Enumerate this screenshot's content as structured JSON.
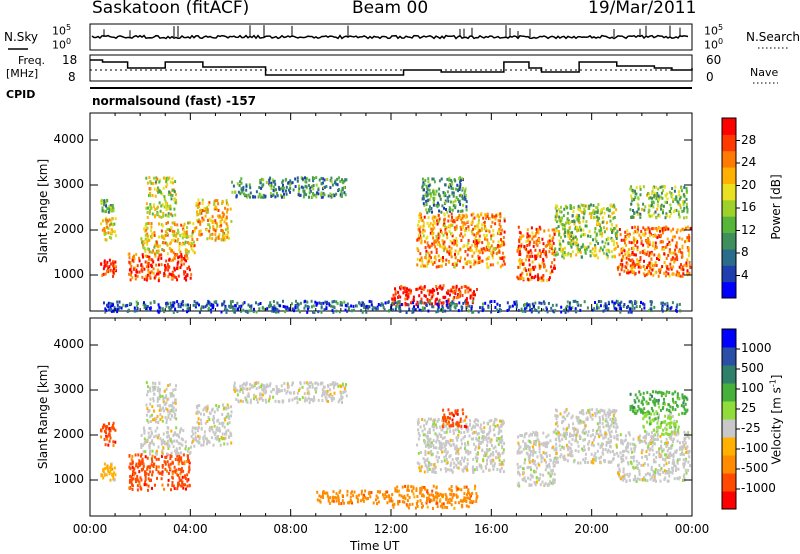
{
  "header": {
    "station": "Saskatoon (fitACF)",
    "beam": "Beam 00",
    "date": "19/Mar/2011"
  },
  "status_panel": {
    "nsky_label": "N.Sky",
    "nsky_ticks": [
      "10^5",
      "10^0"
    ],
    "nsearch_label": "N.Search",
    "nsearch_ticks": [
      "10^5",
      "10^0"
    ],
    "freq_label_1": "Freq.",
    "freq_label_2": "[MHz]",
    "freq_ticks": [
      "18",
      "8"
    ],
    "nave_label": "Nave",
    "nave_ticks": [
      "60",
      "0"
    ],
    "cpid_label": "CPID",
    "cpid_value": "normalsound (fast) -157"
  },
  "chart_data": [
    {
      "type": "heatmap",
      "name": "power",
      "ylabel": "Slant Range [km]",
      "yticks": [
        1000,
        2000,
        3000,
        4000
      ],
      "ylim": [
        200,
        4600
      ],
      "xlim": [
        0,
        24
      ],
      "colorbar_label": "Power [dB]",
      "colorbar_ticks": [
        "4",
        "8",
        "12",
        "16",
        "20",
        "24",
        "28"
      ],
      "colorbar_colors": [
        "#0000ff",
        "#1f3fae",
        "#2a6d8a",
        "#3f8f5c",
        "#56b53a",
        "#9ed12a",
        "#e8e020",
        "#ffb000",
        "#ff7a00",
        "#ff3a00",
        "#ff0000"
      ],
      "echo_regions": [
        {
          "x": [
            0.4,
            1.0
          ],
          "y": [
            1000,
            1400
          ],
          "level": 0.95
        },
        {
          "x": [
            0.4,
            1.0
          ],
          "y": [
            1800,
            2300
          ],
          "level": 0.6
        },
        {
          "x": [
            0.4,
            0.9
          ],
          "y": [
            2400,
            2700
          ],
          "level": 0.35
        },
        {
          "x": [
            1.5,
            4.0
          ],
          "y": [
            900,
            1500
          ],
          "level": 0.92
        },
        {
          "x": [
            2.0,
            4.2
          ],
          "y": [
            1500,
            2200
          ],
          "level": 0.65
        },
        {
          "x": [
            2.2,
            3.4
          ],
          "y": [
            2300,
            3200
          ],
          "level": 0.55
        },
        {
          "x": [
            4.2,
            5.6
          ],
          "y": [
            1800,
            2700
          ],
          "level": 0.7
        },
        {
          "x": [
            5.6,
            10.2
          ],
          "y": [
            2750,
            3200
          ],
          "level": 0.3
        },
        {
          "x": [
            12.0,
            15.4
          ],
          "y": [
            350,
            800
          ],
          "level": 0.97
        },
        {
          "x": [
            13.0,
            16.5
          ],
          "y": [
            1200,
            2400
          ],
          "level": 0.75
        },
        {
          "x": [
            13.2,
            15.0
          ],
          "y": [
            2400,
            3200
          ],
          "level": 0.3
        },
        {
          "x": [
            17.0,
            18.5
          ],
          "y": [
            900,
            2100
          ],
          "level": 0.85
        },
        {
          "x": [
            18.5,
            21.0
          ],
          "y": [
            1400,
            2600
          ],
          "level": 0.5
        },
        {
          "x": [
            21.0,
            23.9
          ],
          "y": [
            1000,
            2100
          ],
          "level": 0.8
        },
        {
          "x": [
            21.5,
            23.8
          ],
          "y": [
            2300,
            3000
          ],
          "level": 0.45
        },
        {
          "x": [
            0.5,
            23.5
          ],
          "y": [
            200,
            450
          ],
          "level": 0.15
        }
      ]
    },
    {
      "type": "heatmap",
      "name": "velocity",
      "ylabel": "Slant Range [km]",
      "xlabel": "Time UT",
      "yticks": [
        1000,
        2000,
        3000,
        4000
      ],
      "ylim": [
        200,
        4600
      ],
      "xlim": [
        0,
        24
      ],
      "xticks": [
        "00:00",
        "04:00",
        "08:00",
        "12:00",
        "16:00",
        "20:00",
        "00:00"
      ],
      "colorbar_label": "Velocity [m s^-1]",
      "colorbar_ticks": [
        "-1000",
        "-500",
        "-100",
        "-25",
        "25",
        "100",
        "500",
        "1000"
      ],
      "colorbar_colors": [
        "#ff0000",
        "#ff4a00",
        "#ff8c00",
        "#ffb000",
        "#c8c8c8",
        "#8fdc3a",
        "#46b03a",
        "#2f7f6a",
        "#2a4fa6",
        "#0000ff"
      ],
      "echo_regions": [
        {
          "x": [
            0.4,
            1.0
          ],
          "y": [
            1000,
            1400
          ],
          "vel": -1
        },
        {
          "x": [
            0.4,
            1.0
          ],
          "y": [
            1800,
            2300
          ],
          "vel": -3
        },
        {
          "x": [
            1.5,
            4.0
          ],
          "y": [
            800,
            1600
          ],
          "vel": -3
        },
        {
          "x": [
            2.0,
            4.2
          ],
          "y": [
            1600,
            2200
          ],
          "vel": 0
        },
        {
          "x": [
            2.2,
            3.4
          ],
          "y": [
            2300,
            3200
          ],
          "vel": 0
        },
        {
          "x": [
            4.2,
            5.6
          ],
          "y": [
            1800,
            2700
          ],
          "vel": 0
        },
        {
          "x": [
            5.6,
            10.2
          ],
          "y": [
            2750,
            3200
          ],
          "vel": 0
        },
        {
          "x": [
            9.0,
            12.0
          ],
          "y": [
            500,
            800
          ],
          "vel": -2
        },
        {
          "x": [
            12.0,
            15.4
          ],
          "y": [
            400,
            900
          ],
          "vel": -2
        },
        {
          "x": [
            13.0,
            16.5
          ],
          "y": [
            1200,
            2400
          ],
          "vel": 0
        },
        {
          "x": [
            14.0,
            15.0
          ],
          "y": [
            2200,
            2600
          ],
          "vel": -3
        },
        {
          "x": [
            17.0,
            18.5
          ],
          "y": [
            900,
            2100
          ],
          "vel": 0
        },
        {
          "x": [
            18.5,
            21.0
          ],
          "y": [
            1400,
            2600
          ],
          "vel": 0
        },
        {
          "x": [
            21.0,
            23.9
          ],
          "y": [
            1000,
            2100
          ],
          "vel": 0
        },
        {
          "x": [
            21.5,
            23.8
          ],
          "y": [
            2500,
            3000
          ],
          "vel": 2
        },
        {
          "x": [
            22.0,
            23.5
          ],
          "y": [
            2000,
            2500
          ],
          "vel": 1
        }
      ]
    }
  ]
}
